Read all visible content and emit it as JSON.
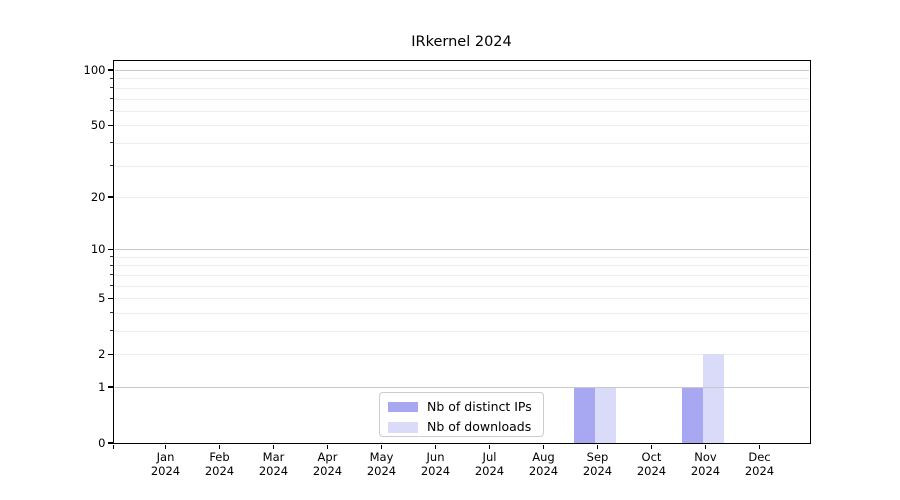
{
  "chart_data": {
    "type": "bar",
    "title": "IRkernel 2024",
    "categories": [
      "Jan 2024",
      "Feb 2024",
      "Mar 2024",
      "Apr 2024",
      "May 2024",
      "Jun 2024",
      "Jul 2024",
      "Aug 2024",
      "Sep 2024",
      "Oct 2024",
      "Nov 2024",
      "Dec 2024"
    ],
    "series": [
      {
        "name": "Nb of distinct IPs",
        "color": "#a7a7f2",
        "values": [
          0,
          0,
          0,
          0,
          0,
          0,
          0,
          0,
          1,
          0,
          1,
          0
        ]
      },
      {
        "name": "Nb of downloads",
        "color": "#dadbf8",
        "values": [
          0,
          0,
          0,
          0,
          0,
          0,
          0,
          0,
          1,
          0,
          2,
          0
        ]
      }
    ],
    "xlabel": "",
    "ylabel": "",
    "y_scale": "log1p",
    "ylim": [
      0,
      113.4
    ],
    "y_ticks": [
      0,
      1,
      2,
      5,
      10,
      20,
      50,
      100
    ],
    "y_minor_ticks": [
      3,
      4,
      6,
      7,
      8,
      9,
      30,
      40,
      60,
      70,
      80,
      90
    ],
    "grid": true,
    "legend_position": "lower center"
  },
  "colors": {
    "background": "#ffffff",
    "spine": "#000000",
    "grid_major": "#c8c8c8",
    "grid_minor": "#ececec",
    "text": "#000000",
    "legend_border": "#cccccc"
  }
}
